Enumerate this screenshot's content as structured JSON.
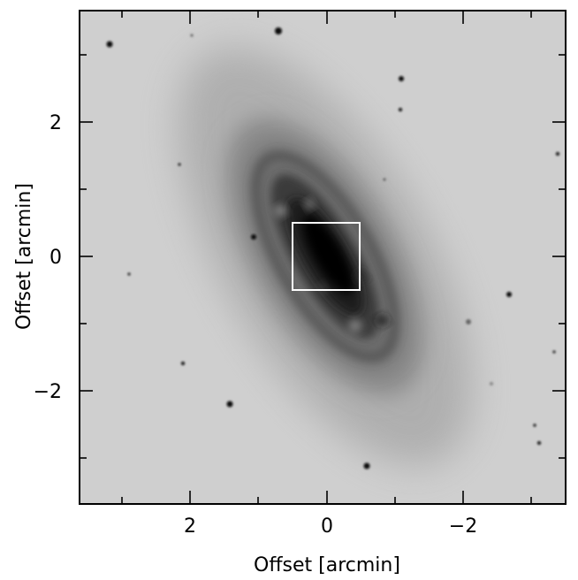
{
  "figure": {
    "xlabel": "Offset [arcmin]",
    "ylabel": "Offset [arcmin]",
    "x_ticks": [
      {
        "value": 2,
        "label": "2"
      },
      {
        "value": 0,
        "label": "0"
      },
      {
        "value": -2,
        "label": "−2"
      }
    ],
    "y_ticks": [
      {
        "value": 2,
        "label": "2"
      },
      {
        "value": 0,
        "label": "0"
      },
      {
        "value": -2,
        "label": "−2"
      }
    ],
    "x_range": [
      3.67,
      -3.67
    ],
    "y_range": [
      -3.67,
      3.67
    ],
    "x_reversed": true,
    "background_color": "#cfcfcf",
    "box": {
      "x_min": -0.5,
      "x_max": 0.5,
      "y_min": -0.5,
      "y_max": 0.5,
      "color": "#ffffff"
    }
  }
}
